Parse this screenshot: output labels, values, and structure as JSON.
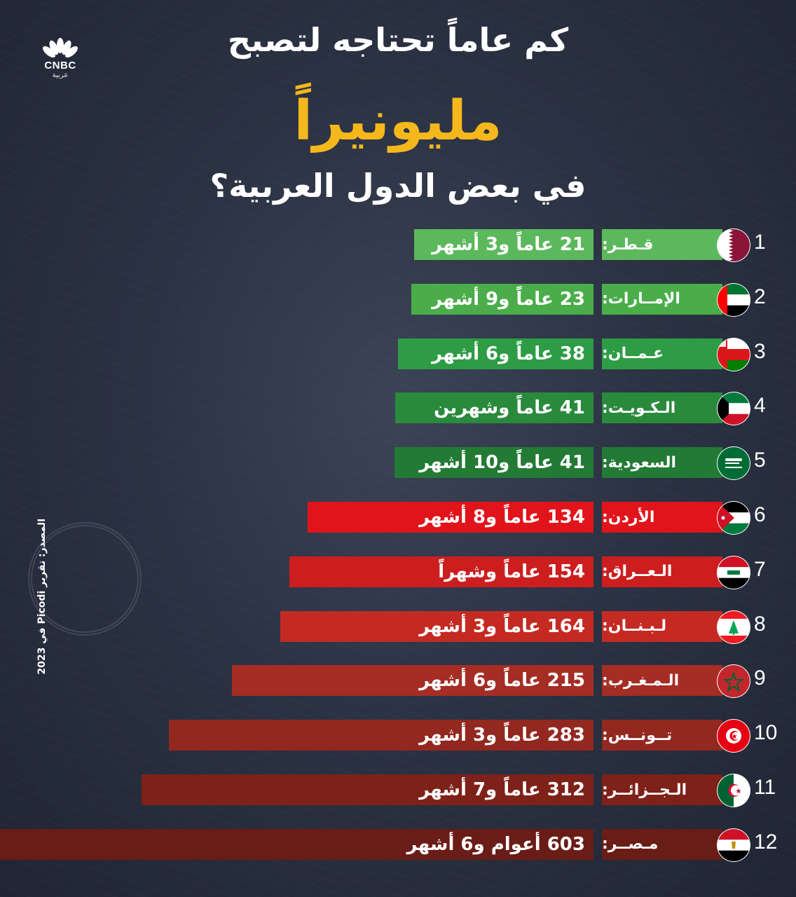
{
  "header": {
    "line1": "كم عاماً تحتاجه لتصبح",
    "line2": "مليونيراً",
    "line3": "في بعض الدول العربية؟"
  },
  "logo": {
    "name": "CNBC",
    "sub": "عربية",
    "icon": "peacock-icon"
  },
  "source": "المصدر: تقرير Picodi في 2023",
  "chart_data": {
    "type": "bar",
    "orientation": "horizontal",
    "unit": "years",
    "categories": [
      "قطر",
      "الإمارات",
      "عمان",
      "الكويت",
      "السعودية",
      "الأردن",
      "العراق",
      "لبنان",
      "المغرب",
      "تونس",
      "الجزائر",
      "مصر"
    ],
    "ranks": [
      "1",
      "2",
      "3",
      "4",
      "5",
      "6",
      "7",
      "8",
      "9",
      "10",
      "11",
      "12"
    ],
    "country_labels": [
      "قـطـر:",
      "الإمــارات:",
      "عـمــان:",
      "الـكـويـت:",
      "السعودية:",
      "الأردن:",
      "الـعــراق:",
      "لـبـنــان:",
      "الـمـغـرب:",
      "تــونــس:",
      "الـجــزائــر:",
      "مـصــر:"
    ],
    "values": [
      21.25,
      23.75,
      38.5,
      41.17,
      41.83,
      134.67,
      154.08,
      164.25,
      215.5,
      283.25,
      312.58,
      603.5
    ],
    "data_labels": [
      "21 عاماً و3 أشهر",
      "23 عاماً و9 أشهر",
      "38 عاماً و6 أشهر",
      "41 عاماً وشهرين",
      "41 عاماً و10 أشهر",
      "134 عاماً و8 أشهر",
      "154 عاماً وشهراً",
      "164 عاماً و3 أشهر",
      "215 عاماً و6 أشهر",
      "283 عاماً و3 أشهر",
      "312 عاماً و7 أشهر",
      "603 أعوام و6 أشهر"
    ],
    "colors": [
      "#5cb85c",
      "#4aad4a",
      "#2e9c45",
      "#2a8a3c",
      "#237a35",
      "#e0141a",
      "#cc1e1e",
      "#c42a22",
      "#a52d24",
      "#922820",
      "#7d2119",
      "#6a1c16"
    ],
    "country_colors": [
      "#5cb85c",
      "#4aad4a",
      "#2e9c45",
      "#2a8a3c",
      "#237a35",
      "#e0141a",
      "#cc1e1e",
      "#c42a22",
      "#a52d24",
      "#922820",
      "#7d2119",
      "#6a1c16"
    ],
    "flags": [
      "qatar-flag",
      "uae-flag",
      "oman-flag",
      "kuwait-flag",
      "saudi-flag",
      "jordan-flag",
      "iraq-flag",
      "lebanon-flag",
      "morocco-flag",
      "tunisia-flag",
      "algeria-flag",
      "egypt-flag"
    ],
    "legend": "none",
    "grid": false
  }
}
